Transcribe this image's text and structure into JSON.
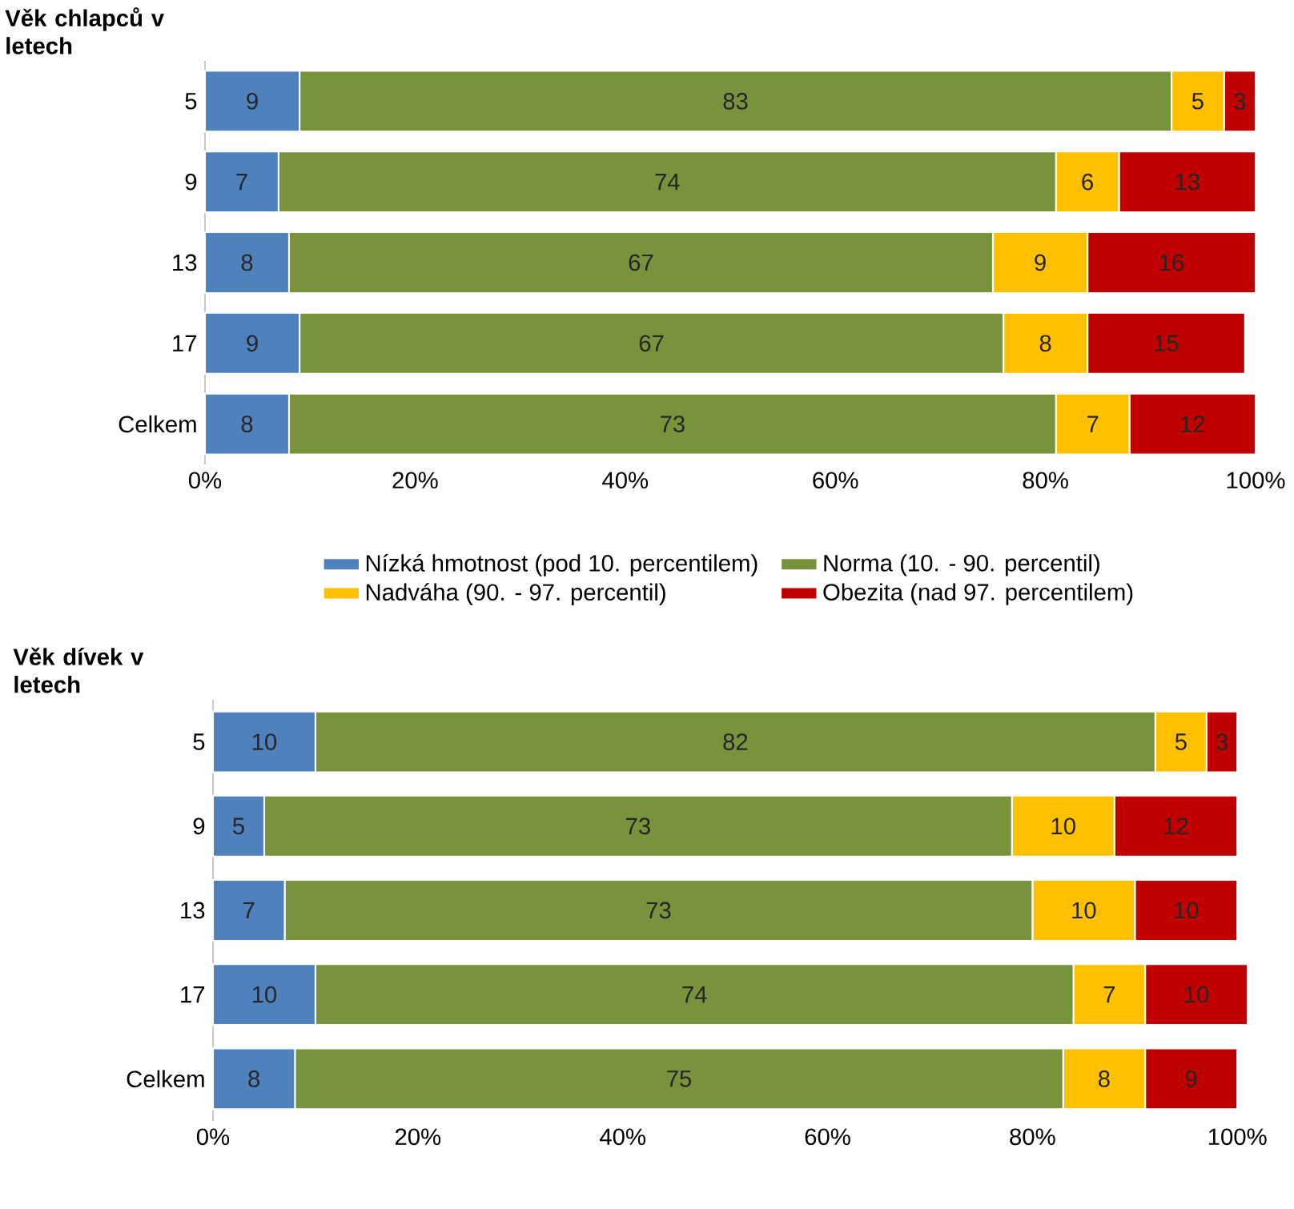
{
  "chart_data": [
    {
      "type": "bar",
      "orientation": "horizontal",
      "stacked": true,
      "ylabel": "Věk chlapců v letech",
      "categories": [
        "5",
        "9",
        "13",
        "17",
        "Celkem"
      ],
      "series": [
        {
          "name": "Nízká hmotnost (pod 10. percentilem)",
          "color": "#4f81bd",
          "values": [
            9,
            7,
            8,
            9,
            8
          ]
        },
        {
          "name": "Norma (10. - 90. percentil)",
          "color": "#77933c",
          "values": [
            83,
            74,
            67,
            67,
            73
          ]
        },
        {
          "name": "Nadváha (90. - 97. percentil)",
          "color": "#ffc000",
          "values": [
            5,
            6,
            9,
            8,
            7
          ]
        },
        {
          "name": "Obezita (nad 97. percentilem)",
          "color": "#c00000",
          "values": [
            3,
            13,
            16,
            15,
            12
          ]
        }
      ],
      "xlim": [
        0,
        100
      ],
      "xticks": [
        {
          "value": 0,
          "label": "0%"
        },
        {
          "value": 20,
          "label": "20%"
        },
        {
          "value": 40,
          "label": "40%"
        },
        {
          "value": 60,
          "label": "60%"
        },
        {
          "value": 80,
          "label": "80%"
        },
        {
          "value": 100,
          "label": "100%"
        }
      ],
      "data_labels": true,
      "legend": "bottom"
    },
    {
      "type": "bar",
      "orientation": "horizontal",
      "stacked": true,
      "ylabel": "Věk dívek v letech",
      "categories": [
        "5",
        "9",
        "13",
        "17",
        "Celkem"
      ],
      "series": [
        {
          "color": "#4f81bd",
          "values": [
            10,
            5,
            7,
            10,
            8
          ]
        },
        {
          "color": "#77933c",
          "values": [
            82,
            73,
            73,
            74,
            75
          ]
        },
        {
          "color": "#ffc000",
          "values": [
            5,
            10,
            10,
            7,
            8
          ]
        },
        {
          "color": "#c00000",
          "values": [
            3,
            12,
            10,
            10,
            9
          ]
        }
      ],
      "xlim": [
        0,
        101
      ],
      "xticks": [
        {
          "value": 0,
          "label": "0%"
        },
        {
          "value": 20,
          "label": "20%"
        },
        {
          "value": 40,
          "label": "40%"
        },
        {
          "value": 60,
          "label": "60%"
        },
        {
          "value": 80,
          "label": "80%"
        },
        {
          "value": 100,
          "label": "100%"
        }
      ],
      "data_labels": true
    }
  ]
}
